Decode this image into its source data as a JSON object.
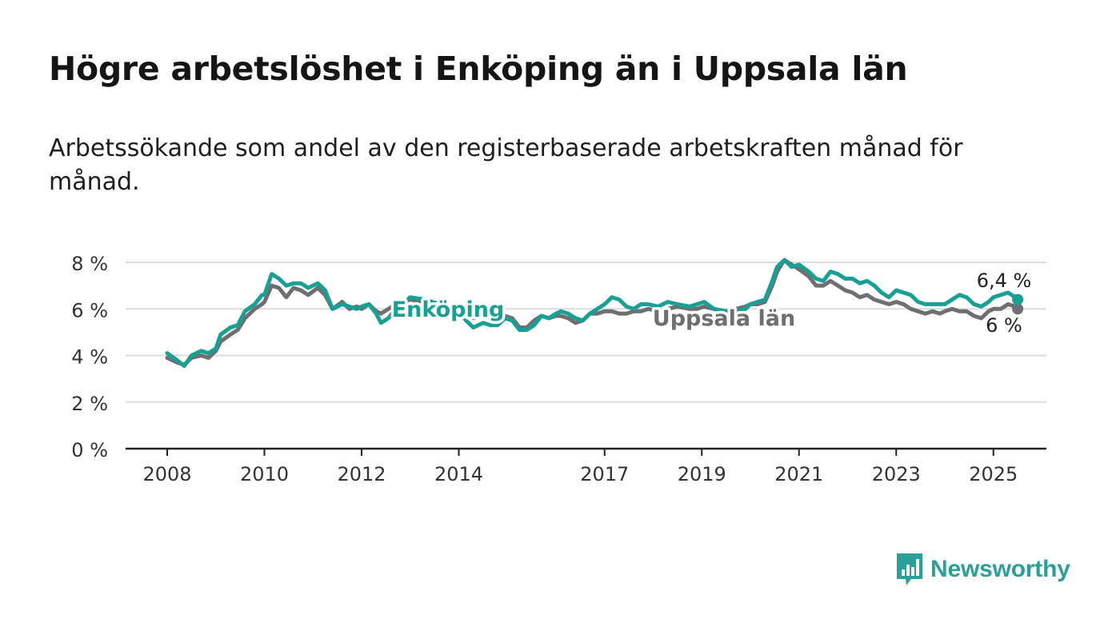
{
  "title": "Högre arbetslöshet i Enköping än i Uppsala län",
  "subtitle": "Arbetssökande som andel av den registerbaserade arbetskraften månad för månad.",
  "brand": {
    "name": "Newsworthy",
    "icon": "bar-chart-speech-bubble-icon"
  },
  "colors": {
    "enkoping": "#17a195",
    "uppsala": "#6e6e73",
    "grid": "#dcdcdc",
    "axis": "#222222",
    "text": "#333333"
  },
  "chart_data": {
    "type": "line",
    "ylim": [
      0,
      8
    ],
    "xlim": [
      2007.2,
      2026.1
    ],
    "y_ticks": [
      0,
      2,
      4,
      6,
      8
    ],
    "y_tick_labels": [
      "0 %",
      "2 %",
      "4 %",
      "6 %",
      "8 %"
    ],
    "x_ticks": [
      2008,
      2010,
      2012,
      2014,
      2017,
      2019,
      2021,
      2023,
      2025
    ],
    "x_tick_labels": [
      "2008",
      "2010",
      "2012",
      "2014",
      "2017",
      "2019",
      "2021",
      "2023",
      "2025"
    ],
    "grid": true,
    "series": [
      {
        "name": "Enköping",
        "end_label": "6,4 %",
        "points": [
          [
            2008.0,
            4.1
          ],
          [
            2008.2,
            3.8
          ],
          [
            2008.35,
            3.55
          ],
          [
            2008.5,
            4.0
          ],
          [
            2008.7,
            4.2
          ],
          [
            2008.85,
            4.1
          ],
          [
            2009.0,
            4.3
          ],
          [
            2009.1,
            4.9
          ],
          [
            2009.3,
            5.2
          ],
          [
            2009.45,
            5.3
          ],
          [
            2009.6,
            5.9
          ],
          [
            2009.8,
            6.2
          ],
          [
            2009.95,
            6.6
          ],
          [
            2010.0,
            6.6
          ],
          [
            2010.15,
            7.5
          ],
          [
            2010.3,
            7.3
          ],
          [
            2010.45,
            7.0
          ],
          [
            2010.6,
            7.1
          ],
          [
            2010.75,
            7.1
          ],
          [
            2010.9,
            6.9
          ],
          [
            2011.1,
            7.1
          ],
          [
            2011.25,
            6.8
          ],
          [
            2011.4,
            6.0
          ],
          [
            2011.6,
            6.2
          ],
          [
            2011.75,
            6.1
          ],
          [
            2011.9,
            6.0
          ],
          [
            2012.0,
            6.1
          ],
          [
            2012.15,
            6.2
          ],
          [
            2012.3,
            5.8
          ],
          [
            2012.4,
            5.4
          ],
          [
            2012.55,
            5.6
          ],
          [
            2012.7,
            6.0
          ],
          [
            2012.85,
            6.2
          ],
          [
            2013.0,
            6.5
          ],
          [
            2013.3,
            6.4
          ],
          [
            2013.6,
            6.2
          ],
          [
            2013.8,
            6.1
          ],
          [
            2014.0,
            5.9
          ],
          [
            2014.15,
            5.5
          ],
          [
            2014.3,
            5.2
          ],
          [
            2014.5,
            5.4
          ],
          [
            2014.65,
            5.3
          ],
          [
            2014.8,
            5.3
          ],
          [
            2014.95,
            5.6
          ],
          [
            2015.1,
            5.5
          ],
          [
            2015.25,
            5.1
          ],
          [
            2015.4,
            5.1
          ],
          [
            2015.55,
            5.3
          ],
          [
            2015.7,
            5.7
          ],
          [
            2015.85,
            5.6
          ],
          [
            2016.0,
            5.8
          ],
          [
            2016.1,
            5.9
          ],
          [
            2016.25,
            5.8
          ],
          [
            2016.4,
            5.6
          ],
          [
            2016.55,
            5.5
          ],
          [
            2016.7,
            5.8
          ],
          [
            2016.85,
            6.0
          ],
          [
            2017.0,
            6.2
          ],
          [
            2017.15,
            6.5
          ],
          [
            2017.3,
            6.4
          ],
          [
            2017.45,
            6.1
          ],
          [
            2017.6,
            6.0
          ],
          [
            2017.75,
            6.2
          ],
          [
            2017.9,
            6.2
          ],
          [
            2018.1,
            6.1
          ],
          [
            2018.3,
            6.3
          ],
          [
            2018.5,
            6.2
          ],
          [
            2018.75,
            6.1
          ],
          [
            2018.9,
            6.2
          ],
          [
            2019.05,
            6.3
          ],
          [
            2019.25,
            6.0
          ],
          [
            2019.5,
            5.9
          ],
          [
            2019.7,
            5.9
          ],
          [
            2019.9,
            6.0
          ],
          [
            2020.0,
            6.2
          ],
          [
            2020.15,
            6.3
          ],
          [
            2020.3,
            6.4
          ],
          [
            2020.45,
            7.2
          ],
          [
            2020.55,
            7.8
          ],
          [
            2020.7,
            8.1
          ],
          [
            2020.85,
            7.8
          ],
          [
            2021.0,
            7.9
          ],
          [
            2021.2,
            7.6
          ],
          [
            2021.35,
            7.3
          ],
          [
            2021.5,
            7.2
          ],
          [
            2021.65,
            7.6
          ],
          [
            2021.8,
            7.5
          ],
          [
            2021.95,
            7.3
          ],
          [
            2022.1,
            7.3
          ],
          [
            2022.25,
            7.1
          ],
          [
            2022.4,
            7.2
          ],
          [
            2022.55,
            7.0
          ],
          [
            2022.7,
            6.7
          ],
          [
            2022.85,
            6.5
          ],
          [
            2023.0,
            6.8
          ],
          [
            2023.15,
            6.7
          ],
          [
            2023.3,
            6.6
          ],
          [
            2023.45,
            6.3
          ],
          [
            2023.6,
            6.2
          ],
          [
            2023.75,
            6.2
          ],
          [
            2023.9,
            6.2
          ],
          [
            2024.0,
            6.2
          ],
          [
            2024.15,
            6.4
          ],
          [
            2024.3,
            6.6
          ],
          [
            2024.45,
            6.5
          ],
          [
            2024.6,
            6.2
          ],
          [
            2024.75,
            6.1
          ],
          [
            2024.9,
            6.3
          ],
          [
            2025.0,
            6.5
          ],
          [
            2025.15,
            6.6
          ],
          [
            2025.3,
            6.7
          ],
          [
            2025.45,
            6.5
          ],
          [
            2025.5,
            6.4
          ]
        ]
      },
      {
        "name": "Uppsala län",
        "end_label": "6 %",
        "points": [
          [
            2008.0,
            3.9
          ],
          [
            2008.2,
            3.7
          ],
          [
            2008.35,
            3.6
          ],
          [
            2008.5,
            3.9
          ],
          [
            2008.7,
            4.0
          ],
          [
            2008.85,
            3.9
          ],
          [
            2009.0,
            4.2
          ],
          [
            2009.1,
            4.6
          ],
          [
            2009.3,
            4.9
          ],
          [
            2009.45,
            5.1
          ],
          [
            2009.6,
            5.6
          ],
          [
            2009.8,
            6.0
          ],
          [
            2009.95,
            6.2
          ],
          [
            2010.0,
            6.3
          ],
          [
            2010.15,
            7.0
          ],
          [
            2010.3,
            6.9
          ],
          [
            2010.45,
            6.5
          ],
          [
            2010.6,
            6.9
          ],
          [
            2010.75,
            6.8
          ],
          [
            2010.9,
            6.6
          ],
          [
            2011.1,
            6.9
          ],
          [
            2011.25,
            6.6
          ],
          [
            2011.4,
            6.0
          ],
          [
            2011.6,
            6.3
          ],
          [
            2011.75,
            6.0
          ],
          [
            2011.9,
            6.1
          ],
          [
            2012.0,
            6.0
          ],
          [
            2012.15,
            6.2
          ],
          [
            2012.3,
            5.9
          ],
          [
            2012.4,
            5.8
          ],
          [
            2012.55,
            6.0
          ],
          [
            2012.7,
            6.2
          ],
          [
            2012.85,
            6.3
          ],
          [
            2013.0,
            6.4
          ],
          [
            2013.3,
            6.3
          ],
          [
            2013.6,
            6.2
          ],
          [
            2013.8,
            6.1
          ],
          [
            2014.0,
            6.0
          ],
          [
            2014.15,
            5.8
          ],
          [
            2014.3,
            5.6
          ],
          [
            2014.5,
            5.7
          ],
          [
            2014.65,
            5.6
          ],
          [
            2014.8,
            5.6
          ],
          [
            2014.95,
            5.7
          ],
          [
            2015.1,
            5.6
          ],
          [
            2015.25,
            5.2
          ],
          [
            2015.4,
            5.2
          ],
          [
            2015.55,
            5.5
          ],
          [
            2015.7,
            5.7
          ],
          [
            2015.85,
            5.6
          ],
          [
            2016.0,
            5.7
          ],
          [
            2016.1,
            5.7
          ],
          [
            2016.25,
            5.6
          ],
          [
            2016.4,
            5.4
          ],
          [
            2016.55,
            5.5
          ],
          [
            2016.7,
            5.8
          ],
          [
            2016.85,
            5.8
          ],
          [
            2017.0,
            5.9
          ],
          [
            2017.15,
            5.9
          ],
          [
            2017.3,
            5.8
          ],
          [
            2017.45,
            5.8
          ],
          [
            2017.6,
            5.9
          ],
          [
            2017.75,
            5.9
          ],
          [
            2017.9,
            6.0
          ],
          [
            2018.1,
            5.9
          ],
          [
            2018.3,
            6.0
          ],
          [
            2018.5,
            6.1
          ],
          [
            2018.75,
            6.0
          ],
          [
            2018.9,
            6.0
          ],
          [
            2019.05,
            6.1
          ],
          [
            2019.25,
            6.0
          ],
          [
            2019.5,
            5.9
          ],
          [
            2019.7,
            6.0
          ],
          [
            2019.9,
            6.1
          ],
          [
            2020.0,
            6.2
          ],
          [
            2020.15,
            6.2
          ],
          [
            2020.3,
            6.3
          ],
          [
            2020.45,
            7.0
          ],
          [
            2020.55,
            7.6
          ],
          [
            2020.7,
            8.1
          ],
          [
            2020.85,
            7.9
          ],
          [
            2021.0,
            7.7
          ],
          [
            2021.2,
            7.4
          ],
          [
            2021.35,
            7.0
          ],
          [
            2021.5,
            7.0
          ],
          [
            2021.65,
            7.2
          ],
          [
            2021.8,
            7.0
          ],
          [
            2021.95,
            6.8
          ],
          [
            2022.1,
            6.7
          ],
          [
            2022.25,
            6.5
          ],
          [
            2022.4,
            6.6
          ],
          [
            2022.55,
            6.4
          ],
          [
            2022.7,
            6.3
          ],
          [
            2022.85,
            6.2
          ],
          [
            2023.0,
            6.3
          ],
          [
            2023.15,
            6.2
          ],
          [
            2023.3,
            6.0
          ],
          [
            2023.45,
            5.9
          ],
          [
            2023.6,
            5.8
          ],
          [
            2023.75,
            5.9
          ],
          [
            2023.9,
            5.8
          ],
          [
            2024.0,
            5.9
          ],
          [
            2024.15,
            6.0
          ],
          [
            2024.3,
            5.9
          ],
          [
            2024.45,
            5.9
          ],
          [
            2024.6,
            5.7
          ],
          [
            2024.75,
            5.6
          ],
          [
            2024.9,
            5.9
          ],
          [
            2025.0,
            6.0
          ],
          [
            2025.15,
            6.0
          ],
          [
            2025.3,
            6.2
          ],
          [
            2025.45,
            6.1
          ],
          [
            2025.5,
            6.0
          ]
        ]
      }
    ]
  }
}
